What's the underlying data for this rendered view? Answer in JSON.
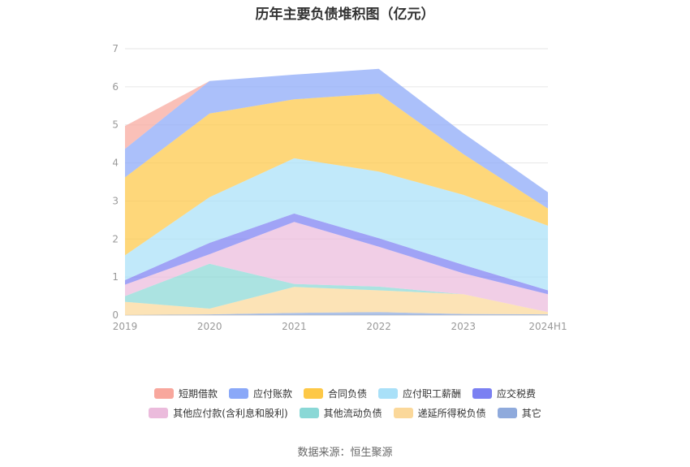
{
  "chart_data": {
    "type": "area",
    "stacked": true,
    "title": "历年主要负债堆积图（亿元）",
    "categories": [
      "2019",
      "2020",
      "2021",
      "2022",
      "2023",
      "2024H1"
    ],
    "ylim": [
      0,
      7
    ],
    "yticks": [
      0,
      1,
      2,
      3,
      4,
      5,
      6,
      7
    ],
    "grid": true,
    "legend_position": "bottom",
    "series": [
      {
        "name": "其它",
        "color": "#8faadc",
        "values": [
          0.0,
          0.02,
          0.06,
          0.08,
          0.03,
          0.02
        ]
      },
      {
        "name": "递延所得税负债",
        "color": "#fbd89a",
        "values": [
          0.35,
          0.15,
          0.68,
          0.57,
          0.52,
          0.06
        ]
      },
      {
        "name": "其他流动负债",
        "color": "#8ad8d6",
        "values": [
          0.15,
          1.18,
          0.08,
          0.1,
          0.0,
          0.0
        ]
      },
      {
        "name": "其他应付款(含利息和股利)",
        "color": "#ebbbdc",
        "values": [
          0.3,
          0.25,
          1.63,
          1.05,
          0.55,
          0.47
        ]
      },
      {
        "name": "应交税费",
        "color": "#7b80f2",
        "values": [
          0.12,
          0.3,
          0.22,
          0.22,
          0.22,
          0.1
        ]
      },
      {
        "name": "应付职工薪酬",
        "color": "#a9e0f8",
        "values": [
          0.65,
          1.2,
          1.45,
          1.75,
          1.84,
          1.7
        ]
      },
      {
        "name": "合同负债",
        "color": "#fdc847",
        "values": [
          2.05,
          2.2,
          1.55,
          2.05,
          1.07,
          0.45
        ]
      },
      {
        "name": "应付账款",
        "color": "#8aa8f8",
        "values": [
          0.75,
          0.85,
          0.65,
          0.65,
          0.55,
          0.43
        ]
      },
      {
        "name": "短期借款",
        "color": "#f8a79d",
        "values": [
          0.6,
          0.0,
          0.0,
          0.0,
          0.0,
          0.0
        ]
      }
    ]
  },
  "legend": {
    "row1": [
      {
        "label": "短期借款",
        "color": "#f8a79d"
      },
      {
        "label": "应付账款",
        "color": "#8aa8f8"
      },
      {
        "label": "合同负债",
        "color": "#fdc847"
      },
      {
        "label": "应付职工薪酬",
        "color": "#a9e0f8"
      },
      {
        "label": "应交税费",
        "color": "#7b80f2"
      }
    ],
    "row2": [
      {
        "label": "其他应付款(含利息和股利)",
        "color": "#ebbbdc"
      },
      {
        "label": "其他流动负债",
        "color": "#8ad8d6"
      },
      {
        "label": "递延所得税负债",
        "color": "#fbd89a"
      },
      {
        "label": "其它",
        "color": "#8faadc"
      }
    ]
  },
  "source": "数据来源：恒生聚源"
}
